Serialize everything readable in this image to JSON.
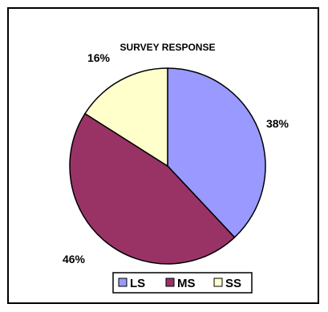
{
  "chart_data": {
    "type": "pie",
    "title": "SURVEY RESPONSE",
    "categories": [
      "LS",
      "MS",
      "SS"
    ],
    "values": [
      38,
      46,
      16
    ],
    "labels": [
      "38%",
      "46%",
      "16%"
    ],
    "colors": [
      "#9999ff",
      "#993366",
      "#ffffcc"
    ],
    "legend_position": "bottom"
  }
}
